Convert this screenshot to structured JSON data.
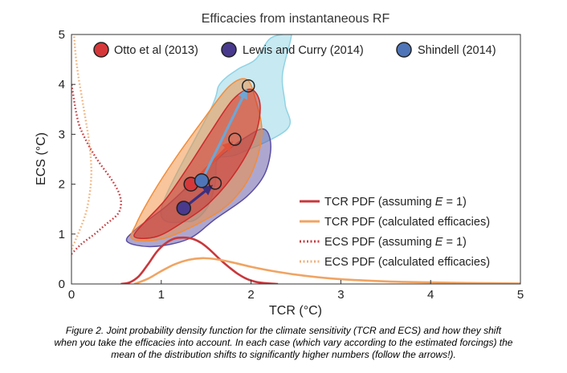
{
  "chart_data": {
    "type": "scatter",
    "title": "Efficacies from instantaneous RF",
    "xlabel": "TCR (°C)",
    "ylabel": "ECS (°C)",
    "xlim": [
      0,
      5
    ],
    "ylim": [
      0,
      5
    ],
    "xticks": [
      "0",
      "1",
      "2",
      "3",
      "4",
      "5"
    ],
    "yticks": [
      "0",
      "1",
      "2",
      "3",
      "4",
      "5"
    ],
    "studies": [
      {
        "name": "Otto et al (2013)",
        "color": "#d6383a",
        "tcr": 1.33,
        "ecs": 2.0,
        "adjusted_tcr": 1.82,
        "adjusted_ecs": 2.9
      },
      {
        "name": "Lewis and Curry (2014)",
        "color": "#4a3a8e",
        "tcr": 1.25,
        "ecs": 1.52,
        "adjusted_tcr": 1.6,
        "adjusted_ecs": 2.02
      },
      {
        "name": "Shindell (2014)",
        "color": "#4f75b8",
        "tcr": 1.45,
        "ecs": 2.07,
        "adjusted_tcr": 1.97,
        "adjusted_ecs": 3.97
      }
    ],
    "series": [
      {
        "name": "TCR PDF (assuming E = 1)",
        "color": "#c8383c",
        "style": "solid",
        "x": [
          0.55,
          0.65,
          0.75,
          0.85,
          0.95,
          1.05,
          1.15,
          1.25,
          1.35,
          1.45,
          1.55,
          1.65,
          1.75,
          1.85,
          1.95,
          2.05,
          2.15,
          2.3
        ],
        "density": [
          0.0,
          0.04,
          0.18,
          0.45,
          0.75,
          0.95,
          1.06,
          1.08,
          1.05,
          0.95,
          0.78,
          0.58,
          0.4,
          0.24,
          0.12,
          0.05,
          0.02,
          0.0
        ]
      },
      {
        "name": "TCR PDF (calculated efficacies)",
        "color": "#f0a463",
        "style": "solid",
        "x": [
          0.7,
          0.85,
          1.0,
          1.15,
          1.3,
          1.45,
          1.6,
          1.8,
          2.0,
          2.3,
          2.6,
          3.0,
          3.5,
          4.0,
          4.5,
          5.0
        ],
        "density": [
          0.0,
          0.12,
          0.3,
          0.46,
          0.56,
          0.6,
          0.58,
          0.5,
          0.4,
          0.28,
          0.19,
          0.11,
          0.06,
          0.035,
          0.02,
          0.012
        ]
      },
      {
        "name": "ECS PDF (assuming E = 1)",
        "color": "#c8383c",
        "style": "dotted",
        "y": [
          0.6,
          0.8,
          1.0,
          1.2,
          1.4,
          1.6,
          1.8,
          2.0,
          2.2,
          2.4,
          2.6,
          2.8,
          3.0,
          3.2,
          3.5,
          3.8,
          4.0
        ],
        "density": [
          0.0,
          0.12,
          0.28,
          0.42,
          0.56,
          0.6,
          0.58,
          0.52,
          0.44,
          0.35,
          0.27,
          0.2,
          0.14,
          0.09,
          0.05,
          0.02,
          0.0
        ]
      },
      {
        "name": "ECS PDF (calculated efficacies)",
        "color": "#f0b07a",
        "style": "dotted",
        "y": [
          0.7,
          1.0,
          1.4,
          1.8,
          2.2,
          2.6,
          3.0,
          3.4,
          3.8,
          4.2,
          4.6,
          5.0
        ],
        "density": [
          0.0,
          0.08,
          0.17,
          0.22,
          0.24,
          0.23,
          0.2,
          0.16,
          0.12,
          0.08,
          0.05,
          0.03
        ]
      }
    ],
    "regions": [
      {
        "name": "Shindell (2014) calculated efficacies",
        "color": "#8fd3e4",
        "tcr": [
          1.0,
          1.3,
          1.5,
          1.6,
          1.63,
          1.85,
          2.4,
          2.38,
          2.35,
          2.45,
          2.35,
          2.2,
          2.05,
          1.85,
          1.65,
          1.55
        ],
        "ecs": [
          1.5,
          1.25,
          1.5,
          2.0,
          2.5,
          2.6,
          3.1,
          3.6,
          4.2,
          5.0,
          5.0,
          4.9,
          4.5,
          4.3,
          4.0,
          3.5
        ]
      },
      {
        "name": "Lewis and Curry (2014) calculated efficacies",
        "color": "#5b4fa2",
        "tcr": [
          0.62,
          0.9,
          1.3,
          1.6,
          1.95,
          2.15,
          2.22,
          2.15,
          1.95,
          1.65,
          1.35,
          1.05,
          0.72
        ],
        "ecs": [
          0.85,
          0.75,
          0.9,
          1.3,
          1.75,
          2.2,
          2.75,
          3.1,
          2.95,
          2.55,
          2.05,
          1.55,
          1.1
        ]
      },
      {
        "name": "Otto et al (2013) calculated efficacies",
        "color": "#f28c3a",
        "tcr": [
          0.68,
          1.0,
          1.4,
          1.75,
          2.0,
          2.12,
          2.05,
          1.95,
          1.75,
          1.45,
          1.15,
          0.9,
          0.72
        ],
        "ecs": [
          0.9,
          0.9,
          1.2,
          1.6,
          2.2,
          3.0,
          3.7,
          4.1,
          3.95,
          3.25,
          2.5,
          1.8,
          1.2
        ]
      },
      {
        "name": "Otto et al (2013) assuming E = 1",
        "color": "#cc2a2a",
        "tcr": [
          0.7,
          0.95,
          1.25,
          1.55,
          1.85,
          2.05,
          2.1,
          2.0,
          1.8,
          1.55,
          1.3,
          1.05,
          0.82
        ],
        "ecs": [
          0.95,
          0.95,
          1.25,
          1.65,
          2.3,
          3.0,
          3.6,
          3.9,
          3.7,
          3.05,
          2.35,
          1.7,
          1.25
        ]
      }
    ],
    "legend_position": "top",
    "pdf_legend_position": "lower-right"
  },
  "legend": {
    "studies": [
      "Otto et al (2013)",
      "Lewis and Curry (2014)",
      "Shindell (2014)"
    ],
    "pdfs": [
      {
        "pre": "TCR PDF (assuming ",
        "var": "E",
        "post": " = 1)"
      },
      {
        "pre": "TCR PDF (calculated efficacies)",
        "var": "",
        "post": ""
      },
      {
        "pre": "ECS PDF (assuming ",
        "var": "E",
        "post": " = 1)"
      },
      {
        "pre": "ECS PDF (calculated efficacies)",
        "var": "",
        "post": ""
      }
    ]
  },
  "caption": {
    "line1": "Figure 2. Joint probability density function for the climate sensitivity (TCR and ECS) and how they shift",
    "line2": "when you take the efficacies into account. In each case (which vary according to the estimated forcings) the",
    "line3": "mean of the distribution shifts to significantly higher numbers (follow the arrows!)."
  }
}
